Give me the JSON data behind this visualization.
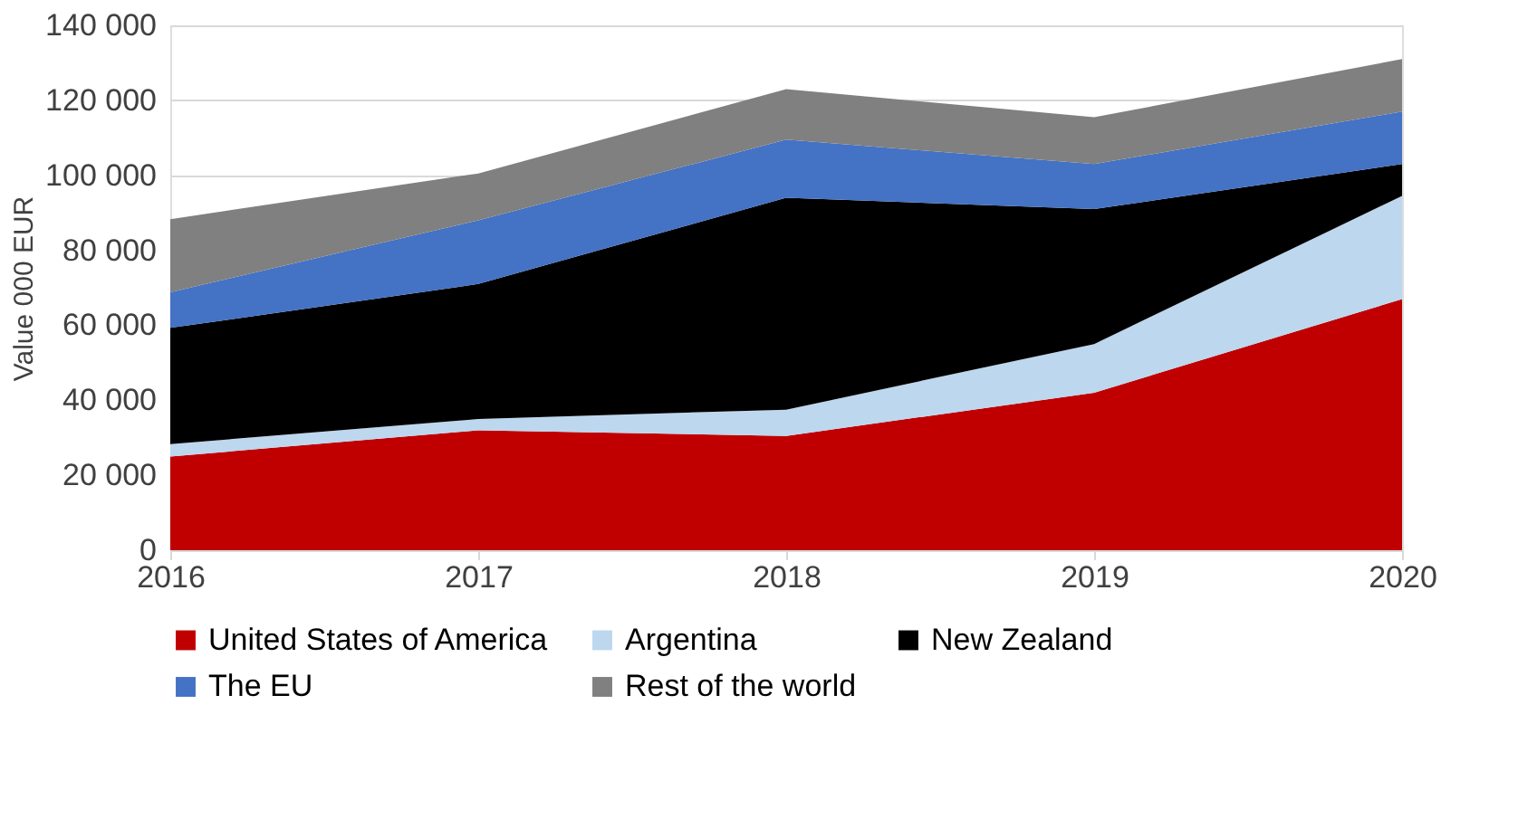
{
  "chart_data": {
    "type": "area",
    "stacked": true,
    "ylabel": "Value 000 EUR",
    "x": [
      2016,
      2017,
      2018,
      2019,
      2020
    ],
    "xlim": [
      2016,
      2020
    ],
    "xticks": [
      2016,
      2017,
      2018,
      2019,
      2020
    ],
    "ylim": [
      0,
      140000
    ],
    "yticks": [
      0,
      {
        "value": 20000,
        "label": "20 000"
      },
      {
        "value": 40000,
        "label": "40 000"
      },
      {
        "value": 60000,
        "label": "60 000"
      },
      {
        "value": 80000,
        "label": "80 000"
      },
      {
        "value": 100000,
        "label": "100 000"
      },
      {
        "value": 120000,
        "label": "120 000"
      },
      {
        "value": 140000,
        "label": "140 000"
      }
    ],
    "grid": "y",
    "legend": "bottom",
    "series": [
      {
        "name": "United States of America",
        "color": "#c00000",
        "values": [
          25000,
          32000,
          30500,
          42000,
          67000
        ]
      },
      {
        "name": "Argentina",
        "color": "#bdd7ee",
        "values": [
          3300,
          3000,
          7000,
          13000,
          27500
        ]
      },
      {
        "name": "New Zealand",
        "color": "#000000",
        "values": [
          31000,
          36000,
          56500,
          36000,
          8500
        ]
      },
      {
        "name": "The EU",
        "color": "#4472c4",
        "values": [
          9500,
          17000,
          15500,
          12000,
          14000
        ]
      },
      {
        "name": "Rest of the world",
        "color": "#808080",
        "values": [
          19500,
          12500,
          13500,
          12500,
          14000
        ]
      }
    ]
  }
}
